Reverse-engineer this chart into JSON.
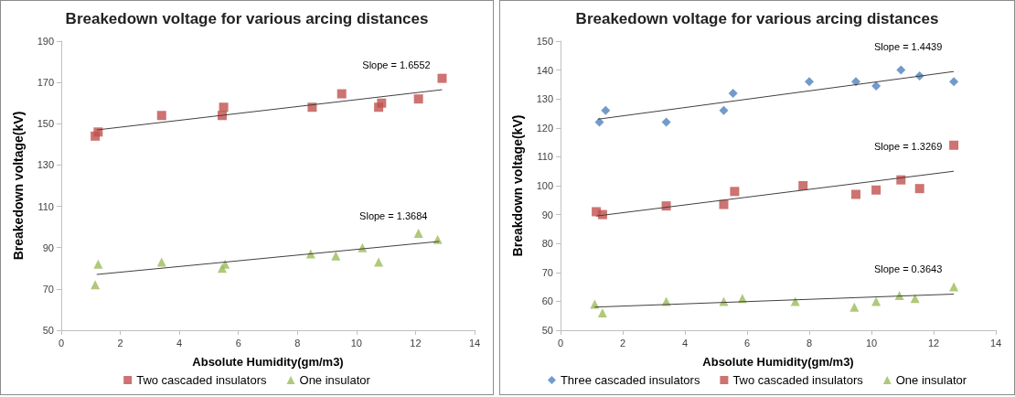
{
  "chart_data": [
    {
      "type": "scatter",
      "title": "Breakedown voltage for various arcing distances",
      "xlabel": "Absolute Humidity(gm/m3)",
      "ylabel": "Breakedown voltage(kV)",
      "xlim": [
        0,
        14
      ],
      "xticks": [
        0,
        2,
        4,
        6,
        8,
        10,
        12,
        14
      ],
      "ylim": [
        50,
        190
      ],
      "yticks": [
        50,
        70,
        90,
        110,
        130,
        150,
        170,
        190
      ],
      "grid": false,
      "legend": "bottom",
      "series": [
        {
          "name": "Two cascaded insulators",
          "color": "#c0504d",
          "marker": "square",
          "x": [
            1.15,
            1.25,
            3.4,
            5.45,
            5.5,
            8.5,
            9.5,
            10.75,
            10.85,
            12.1,
            12.9
          ],
          "values": [
            144,
            146,
            154,
            154,
            158,
            158,
            164.5,
            158,
            160,
            162,
            172
          ]
        },
        {
          "name": "One insulator",
          "color": "#9bbb59",
          "marker": "triangle",
          "x": [
            1.15,
            1.25,
            3.4,
            5.45,
            5.55,
            8.45,
            9.3,
            10.2,
            10.75,
            12.1,
            12.75
          ],
          "values": [
            72,
            82,
            83,
            80,
            82,
            87,
            86,
            90,
            83,
            97,
            94
          ]
        },
        {
          "type": "line",
          "color": "#404040",
          "marker": "none",
          "x": [
            1.2,
            12.9
          ],
          "values": [
            147,
            166.5
          ]
        },
        {
          "type": "line",
          "color": "#404040",
          "marker": "none",
          "x": [
            1.2,
            12.8
          ],
          "values": [
            77,
            93
          ]
        }
      ],
      "annotations": [
        "Slope = 1.6552",
        "Slope = 1.3684"
      ]
    },
    {
      "type": "scatter",
      "title": "Breakedown voltage for various arcing distances",
      "xlabel": "Absolute Humidity(gm/m3)",
      "ylabel": "Breakdown voltage(kV)",
      "xlim": [
        0,
        14
      ],
      "xticks": [
        0,
        2,
        4,
        6,
        8,
        10,
        12,
        14
      ],
      "ylim": [
        50,
        150
      ],
      "yticks": [
        50,
        60,
        70,
        80,
        90,
        100,
        110,
        120,
        130,
        140,
        150
      ],
      "grid": false,
      "legend": "bottom",
      "series": [
        {
          "name": "Three cascaded insulators",
          "color": "#4f81bd",
          "marker": "diamond",
          "x": [
            1.25,
            1.45,
            3.4,
            5.25,
            5.55,
            8,
            9.5,
            10.15,
            10.95,
            11.55,
            12.65
          ],
          "values": [
            122,
            126,
            122,
            126,
            132,
            136,
            136,
            134.5,
            140,
            138,
            136
          ]
        },
        {
          "name": "Two cascaded insulators",
          "color": "#c0504d",
          "marker": "square",
          "x": [
            1.15,
            1.35,
            3.4,
            5.25,
            5.6,
            7.8,
            9.5,
            10.15,
            10.95,
            11.55,
            12.65
          ],
          "values": [
            91,
            90,
            93,
            93.5,
            98,
            100,
            97,
            98.5,
            102,
            99,
            114
          ]
        },
        {
          "name": "One insulator",
          "color": "#9bbb59",
          "marker": "triangle",
          "x": [
            1.1,
            1.35,
            3.4,
            5.25,
            5.85,
            7.55,
            9.45,
            10.15,
            10.9,
            11.4,
            12.65
          ],
          "values": [
            59,
            56,
            60,
            60,
            61,
            60,
            58,
            60,
            62,
            61,
            65
          ]
        },
        {
          "type": "line",
          "color": "#404040",
          "marker": "none",
          "x": [
            1.2,
            12.65
          ],
          "values": [
            123,
            139.5
          ]
        },
        {
          "type": "line",
          "color": "#404040",
          "marker": "none",
          "x": [
            1.15,
            12.65
          ],
          "values": [
            89.5,
            105
          ]
        },
        {
          "type": "line",
          "color": "#404040",
          "marker": "none",
          "x": [
            1.1,
            12.65
          ],
          "values": [
            58,
            62.5
          ]
        }
      ],
      "annotations": [
        "Slope = 1.4439",
        "Slope = 1.3269",
        "Slope = 0.3643"
      ]
    }
  ]
}
